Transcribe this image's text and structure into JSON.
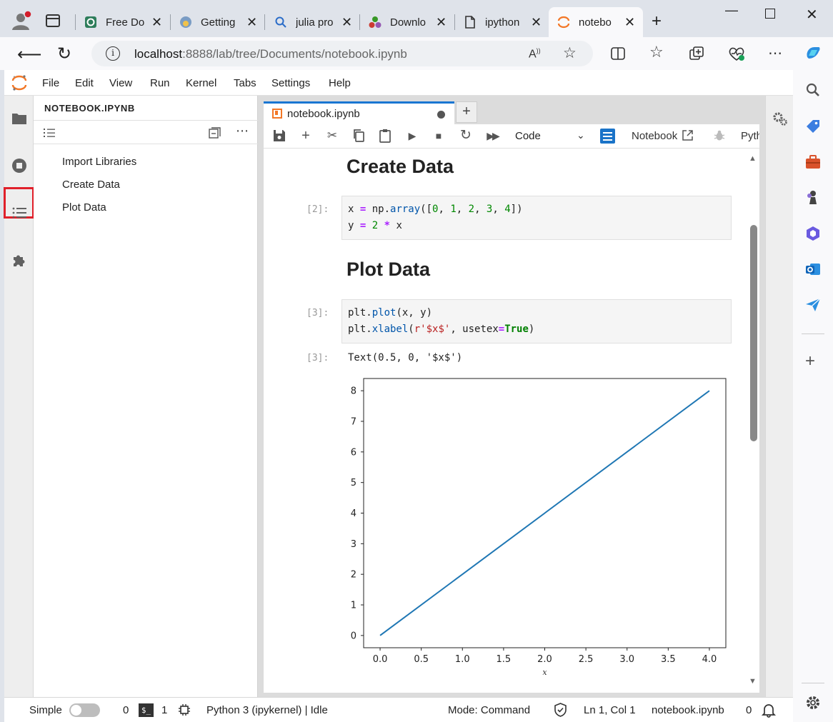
{
  "browser": {
    "tabs": [
      {
        "title": "Free Do",
        "active": false
      },
      {
        "title": "Getting",
        "active": false
      },
      {
        "title": "julia pro",
        "active": false
      },
      {
        "title": "Downlo",
        "active": false
      },
      {
        "title": "ipython",
        "active": false
      },
      {
        "title": "notebo",
        "active": true
      }
    ],
    "url_host": "localhost",
    "url_path": ":8888/lab/tree/Documents/notebook.ipynb"
  },
  "menubar": [
    "File",
    "Edit",
    "View",
    "Run",
    "Kernel",
    "Tabs",
    "Settings",
    "Help"
  ],
  "toc": {
    "title": "NOTEBOOK.IPYNB",
    "items": [
      "Import Libraries",
      "Create Data",
      "Plot Data"
    ]
  },
  "notebook": {
    "tab_title": "notebook.ipynb",
    "cell_type": "Code",
    "notebook_link": "Notebook",
    "kernel_partial": "Pyth",
    "headings": [
      "Create Data",
      "Plot Data"
    ],
    "cells": [
      {
        "prompt": "[2]:"
      },
      {
        "prompt": "[3]:"
      }
    ],
    "output_prompt": "[3]:",
    "output_text": "Text(0.5, 0, '$x$')"
  },
  "chart_data": {
    "type": "line",
    "x": [
      0,
      1,
      2,
      3,
      4
    ],
    "series": [
      {
        "values": [
          0,
          2,
          4,
          6,
          8
        ],
        "color": "#1f77b4"
      }
    ],
    "xlabel": "x",
    "xticks": [
      "0.0",
      "0.5",
      "1.0",
      "1.5",
      "2.0",
      "2.5",
      "3.0",
      "3.5",
      "4.0"
    ],
    "yticks": [
      "0",
      "1",
      "2",
      "3",
      "4",
      "5",
      "6",
      "7",
      "8"
    ],
    "xlim": [
      -0.2,
      4.2
    ],
    "ylim": [
      -0.4,
      8.4
    ],
    "grid": false
  },
  "statusbar": {
    "mode_simple": "Simple",
    "count1": "0",
    "count2": "1",
    "kernel_status": "Python 3 (ipykernel) | Idle",
    "mode": "Mode: Command",
    "position": "Ln 1, Col 1",
    "filename": "notebook.ipynb",
    "notifications": "0"
  }
}
